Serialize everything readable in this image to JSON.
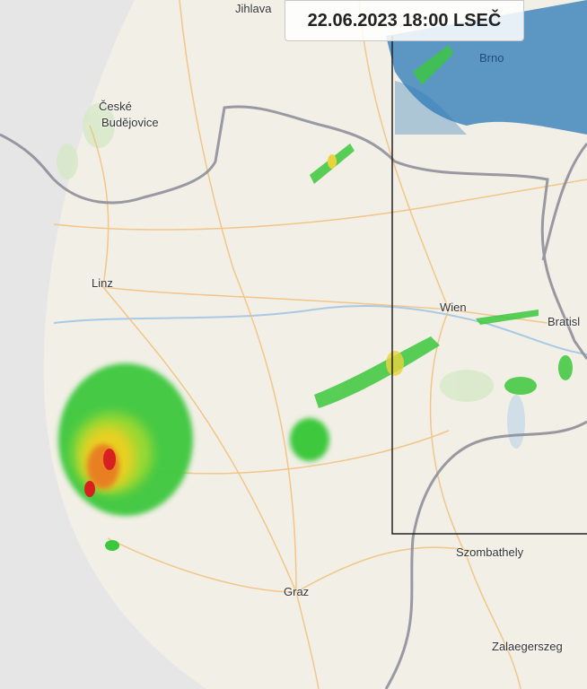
{
  "timestamp": "22.06.2023 18:00 LSEČ",
  "cities": {
    "jihlava": "Jihlava",
    "brno": "Brno",
    "ceske_budejovice_1": "České",
    "ceske_budejovice_2": "Budějovice",
    "linz": "Linz",
    "wien": "Wien",
    "bratislava": "Bratisl",
    "graz": "Graz",
    "szombathely": "Szombathely",
    "zalaegerszeg": "Zalaegerszeg"
  },
  "colors": {
    "land": "#f2efe6",
    "outside_radar": "#e6e6e6",
    "border": "#8a8a96",
    "road": "#f2c27e",
    "radar_light": "#2a7ab8",
    "radar_green": "#3cc83c",
    "radar_yellow": "#e8d020",
    "radar_red": "#d82020"
  }
}
